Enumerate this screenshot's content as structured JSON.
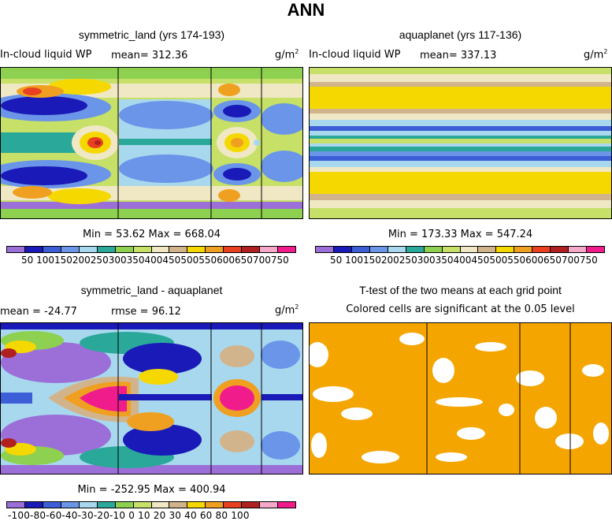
{
  "chart_data": {
    "type": "heatmap",
    "title": "ANN",
    "units": "g/m",
    "units_exp": "2",
    "panels": [
      {
        "id": "symmetric_land",
        "title": "symmetric_land (yrs 174-193)",
        "variable": "In-cloud liquid WP",
        "mean_text": "mean= 312.36",
        "minmax_text": "Min =  53.62 Max = 668.04",
        "colorbar": {
          "levels": [
            "50",
            "100",
            "150",
            "200",
            "250",
            "300",
            "350",
            "400",
            "450",
            "500",
            "550",
            "600",
            "650",
            "700",
            "750"
          ],
          "labels_text": "50 100150200250300350400450500550600650700750"
        }
      },
      {
        "id": "aquaplanet",
        "title": "aquaplanet (yrs 117-136)",
        "variable": "In-cloud liquid WP",
        "mean_text": "mean= 337.13",
        "minmax_text": "Min = 173.33 Max = 547.24",
        "colorbar": {
          "levels": [
            "50",
            "100",
            "150",
            "200",
            "250",
            "300",
            "350",
            "400",
            "450",
            "500",
            "550",
            "600",
            "650",
            "700",
            "750"
          ],
          "labels_text": "50 100150200250300350400450500550600650700750"
        }
      },
      {
        "id": "difference",
        "title": "symmetric_land - aquaplanet",
        "mean_text": "mean = -24.77",
        "rmse_text": "rmse =  96.12",
        "minmax_text": "Min = -252.95 Max = 400.94",
        "colorbar": {
          "levels": [
            "-100",
            "-80",
            "-60",
            "-40",
            "-30",
            "-20",
            "-10",
            "0",
            "10",
            "20",
            "30",
            "40",
            "60",
            "80",
            "100"
          ],
          "labels_text": "-100-80-60-40-30-20-10 0  10  20  30  40  60  80 100"
        }
      },
      {
        "id": "ttest",
        "title": "T-test of the two means at each grid point",
        "subtitle": "Colored cells are significant at the 0.05 level"
      }
    ],
    "palettes": {
      "absolute": [
        "#9c6fd8",
        "#1a1ab8",
        "#3c5fd8",
        "#6a95e8",
        "#a8d8ee",
        "#2aa89a",
        "#8ed050",
        "#c6e068",
        "#f0e8c4",
        "#d2b48c",
        "#f5d800",
        "#f0a020",
        "#e84020",
        "#b02020",
        "#f5a8c8",
        "#f01c8c"
      ],
      "difference": [
        "#9c6fd8",
        "#1a1ab8",
        "#3c5fd8",
        "#6a95e8",
        "#a8d8ee",
        "#2aa89a",
        "#8ed050",
        "#c6e068",
        "#f0e8c4",
        "#d2b48c",
        "#f5d800",
        "#f0a020",
        "#e84020",
        "#b02020",
        "#f5a8c8",
        "#f01c8c"
      ],
      "significant": "#f5a500"
    }
  }
}
